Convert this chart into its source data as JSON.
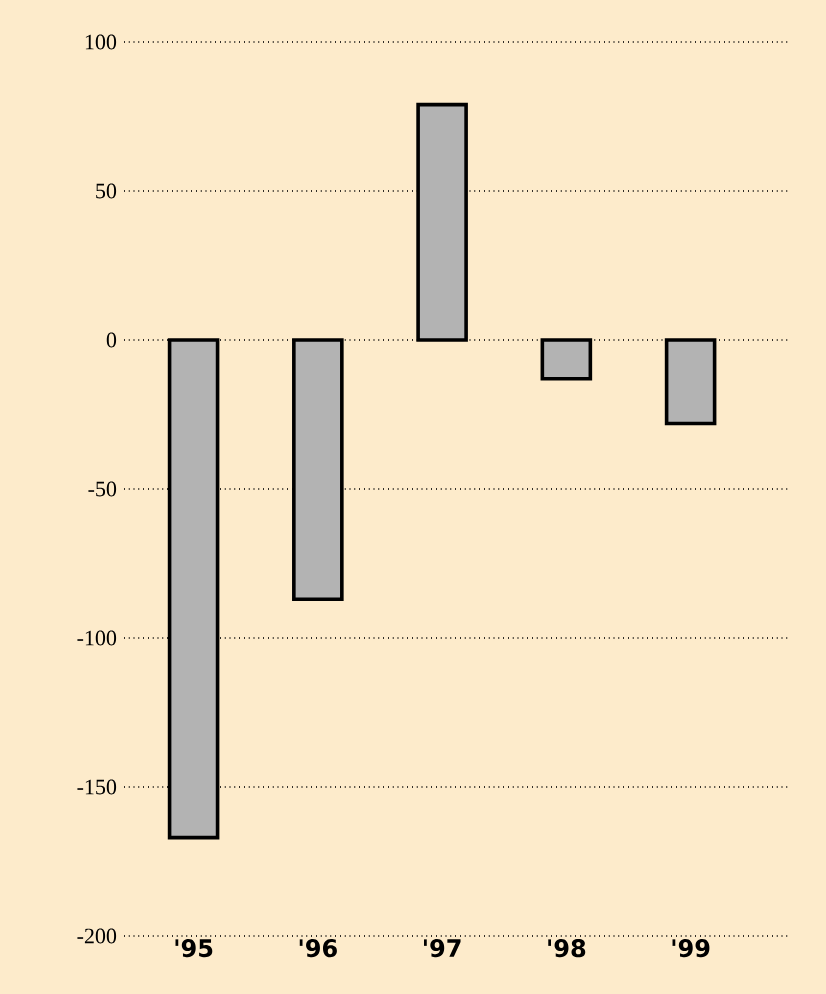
{
  "chart_data": {
    "type": "bar",
    "categories": [
      "'95",
      "'96",
      "'97",
      "'98",
      "'99"
    ],
    "values": [
      -167,
      -87,
      79,
      -13,
      -28
    ],
    "color": "#b3b3b3",
    "ylim": [
      -200,
      100
    ],
    "yticks": [
      -200,
      -150,
      -100,
      -50,
      0,
      50,
      100
    ],
    "grid": "y"
  }
}
